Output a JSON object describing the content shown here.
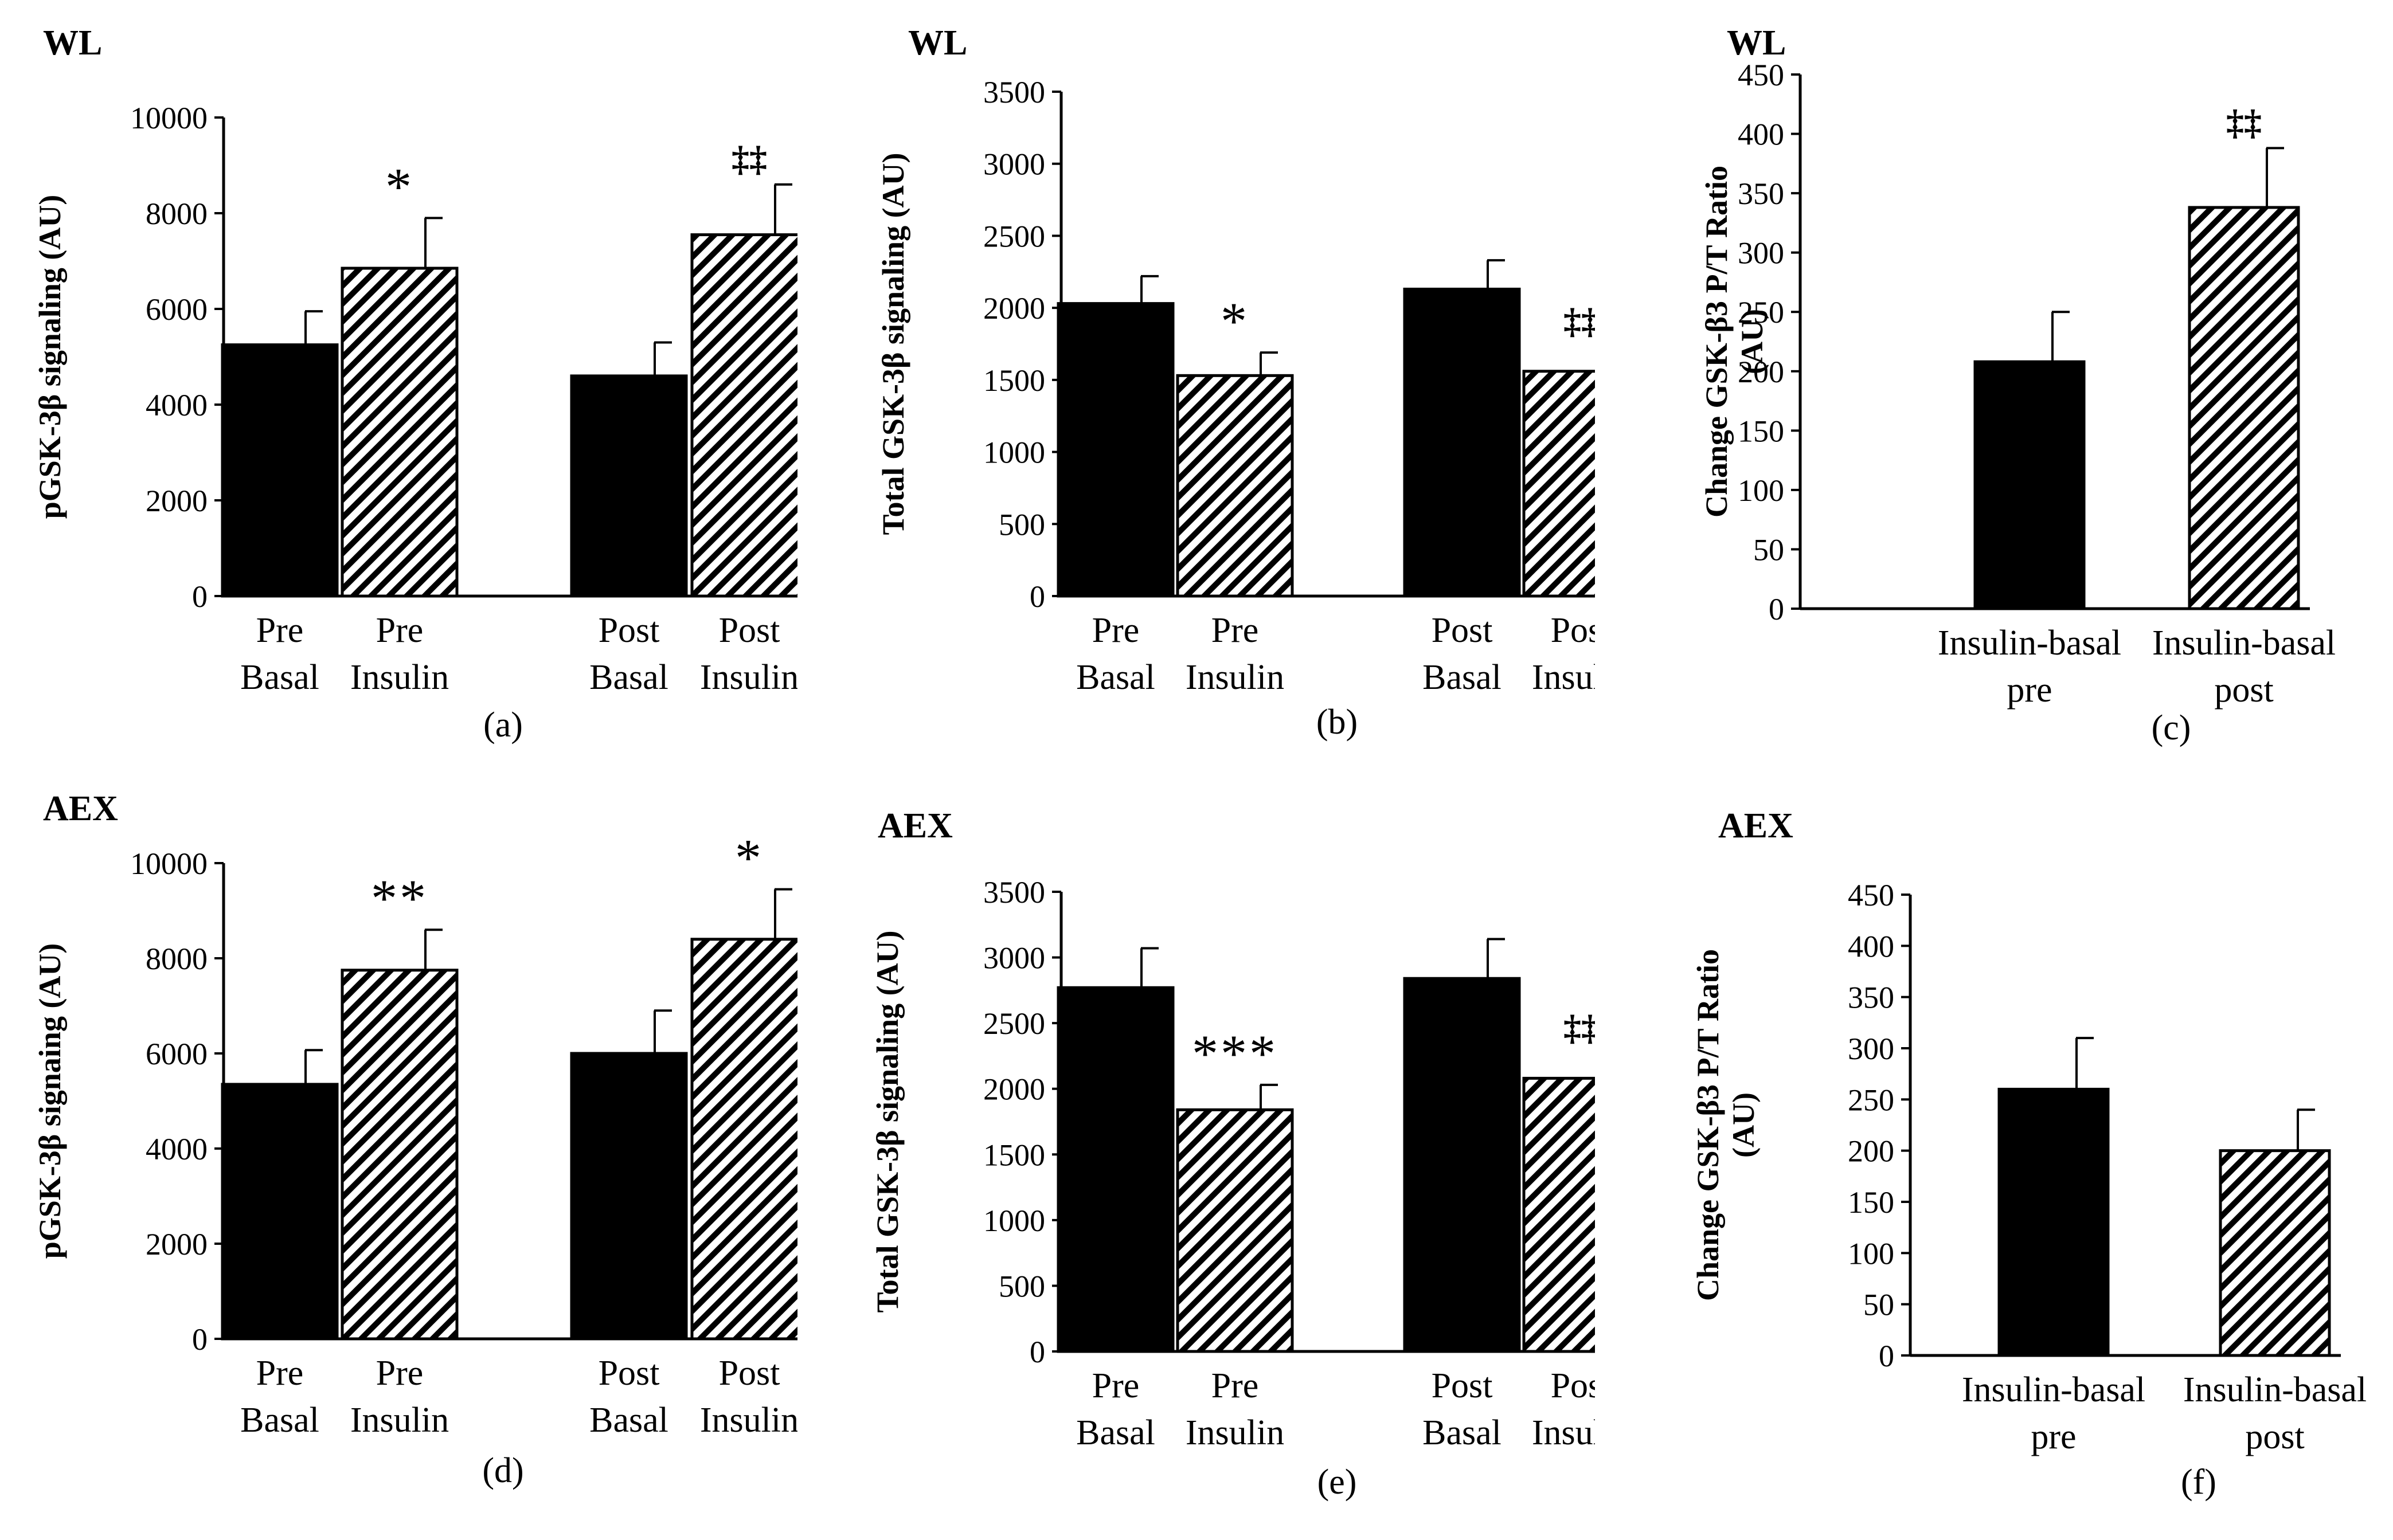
{
  "chart_data": [
    {
      "panel": "(a)",
      "group": "WL",
      "type": "bar",
      "ylabel": "pGSK-3β  signaling (AU)",
      "ylim": [
        0,
        10000
      ],
      "yticks": [
        0,
        2000,
        4000,
        6000,
        8000,
        10000
      ],
      "categories": [
        [
          "Pre",
          "Basal"
        ],
        [
          "Pre",
          "Insulin"
        ],
        [
          "Post",
          "Basal"
        ],
        [
          "Post",
          "Insulin"
        ]
      ],
      "values": [
        5250,
        6850,
        4600,
        7550
      ],
      "errors": [
        700,
        1050,
        700,
        1050
      ],
      "fills": [
        "solid",
        "hatch",
        "solid",
        "hatch"
      ],
      "annotations": [
        "",
        "*",
        "",
        "‡‡"
      ]
    },
    {
      "panel": "(b)",
      "group": "WL",
      "type": "bar",
      "ylabel": "Total  GSK-3β  signaling (AU)",
      "ylim": [
        0,
        3500
      ],
      "yticks": [
        0,
        500,
        1000,
        1500,
        2000,
        2500,
        3000,
        3500
      ],
      "categories": [
        [
          "Pre",
          "Basal"
        ],
        [
          "Pre",
          "Insulin"
        ],
        [
          "Post",
          "Basal"
        ],
        [
          "Post",
          "Insulin"
        ]
      ],
      "values": [
        2030,
        1530,
        2130,
        1560
      ],
      "errors": [
        190,
        160,
        200,
        170
      ],
      "fills": [
        "solid",
        "hatch",
        "solid",
        "hatch"
      ],
      "annotations": [
        "",
        "*",
        "",
        "‡‡"
      ]
    },
    {
      "panel": "(c)",
      "group": "WL",
      "type": "bar",
      "ylabel": [
        "Change  GSK-β3  P/T Ratio",
        "(AU)"
      ],
      "ylim": [
        0,
        450
      ],
      "yticks": [
        0,
        50,
        100,
        150,
        200,
        250,
        300,
        350,
        400,
        450
      ],
      "categories": [
        [
          "Insulin-basal",
          "pre"
        ],
        [
          "Insulin-basal",
          "post"
        ]
      ],
      "values": [
        208,
        338
      ],
      "errors": [
        42,
        50
      ],
      "fills": [
        "solid",
        "hatch"
      ],
      "annotations": [
        "",
        "‡‡"
      ]
    },
    {
      "panel": "(d)",
      "group": "AEX",
      "type": "bar",
      "ylabel": "pGSK-3β  signaing (AU)",
      "ylim": [
        0,
        10000
      ],
      "yticks": [
        0,
        2000,
        4000,
        6000,
        8000,
        10000
      ],
      "categories": [
        [
          "Pre",
          "Basal"
        ],
        [
          "Pre",
          "Insulin"
        ],
        [
          "Post",
          "Basal"
        ],
        [
          "Post",
          "Insulin"
        ]
      ],
      "values": [
        5350,
        7750,
        6000,
        8400
      ],
      "errors": [
        720,
        850,
        900,
        1050
      ],
      "fills": [
        "solid",
        "hatch",
        "solid",
        "hatch"
      ],
      "annotations": [
        "",
        "**",
        "",
        "*"
      ]
    },
    {
      "panel": "(e)",
      "group": "AEX",
      "type": "bar",
      "ylabel": "Total  GSK-3β  signaling (AU)",
      "ylim": [
        0,
        3500
      ],
      "yticks": [
        0,
        500,
        1000,
        1500,
        2000,
        2500,
        3000,
        3500
      ],
      "categories": [
        [
          "Pre",
          "Basal"
        ],
        [
          "Pre",
          "Insulin"
        ],
        [
          "Post",
          "Basal"
        ],
        [
          "Post",
          "Insulin"
        ]
      ],
      "values": [
        2770,
        1840,
        2840,
        2080
      ],
      "errors": [
        300,
        190,
        300,
        190
      ],
      "fills": [
        "solid",
        "hatch",
        "solid",
        "hatch"
      ],
      "annotations": [
        "",
        "***",
        "",
        "‡‡"
      ]
    },
    {
      "panel": "(f)",
      "group": "AEX",
      "type": "bar",
      "ylabel": [
        "Change  GSK-β3  P/T Ratio",
        "(AU)"
      ],
      "ylim": [
        0,
        450
      ],
      "yticks": [
        0,
        50,
        100,
        150,
        200,
        250,
        300,
        350,
        400,
        450
      ],
      "categories": [
        [
          "Insulin-basal",
          "pre"
        ],
        [
          "Insulin-basal",
          "post"
        ]
      ],
      "values": [
        260,
        200
      ],
      "errors": [
        50,
        40
      ],
      "fills": [
        "solid",
        "hatch"
      ],
      "annotations": [
        "",
        ""
      ]
    }
  ]
}
